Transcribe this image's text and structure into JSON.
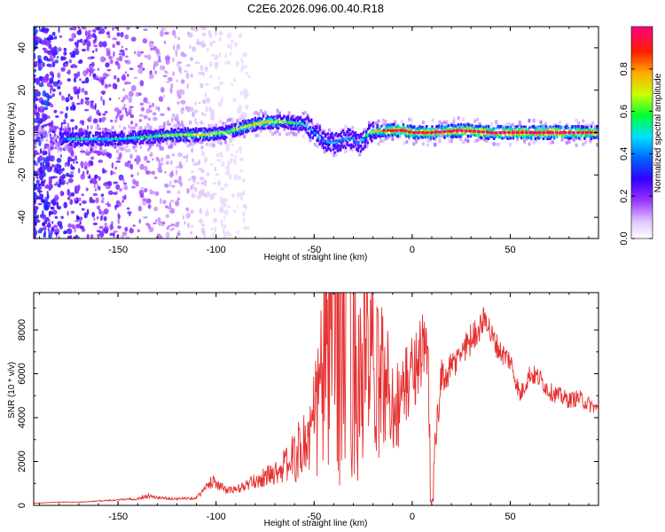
{
  "window": {
    "title": "C2E6.2026.096.00.40.R18"
  },
  "chart_data": [
    {
      "type": "heatmap",
      "title": "C2E6.2026.096.00.40.R18",
      "xlabel": "Height of straight line (km)",
      "ylabel": "Frequency (Hz)",
      "xlim": [
        -193,
        95
      ],
      "ylim": [
        -50,
        50
      ],
      "x_ticks": [
        -150,
        -100,
        -50,
        0,
        50
      ],
      "y_ticks": [
        -40,
        -20,
        0,
        20,
        40
      ],
      "colorbar": {
        "label": "Normalized spectral amplitude",
        "range": [
          0,
          1
        ],
        "ticks": [
          0.0,
          0.2,
          0.4,
          0.6,
          0.8
        ],
        "tick_labels": [
          "0.0",
          "0.2",
          "0.4",
          "0.6",
          "0.8"
        ],
        "colors": [
          "#ffffff",
          "#cc99ff",
          "#7a00e6",
          "#2020ff",
          "#00d0ff",
          "#00ff00",
          "#ffff00",
          "#ff8000",
          "#ff0000",
          "#ff0080"
        ]
      },
      "ridge": {
        "x": [
          -180,
          -165,
          -150,
          -135,
          -120,
          -105,
          -95,
          -85,
          -75,
          -65,
          -55,
          -50,
          -45,
          -40,
          -35,
          -30,
          -27,
          -22,
          -15,
          -5,
          0,
          10,
          25,
          40,
          55,
          70,
          85,
          95
        ],
        "freq": [
          -3,
          -3,
          -3,
          -2,
          -1,
          -1,
          0,
          3,
          5,
          5,
          4,
          0,
          -4,
          -5,
          -3,
          -3,
          -5,
          0,
          1,
          1,
          0,
          0,
          1,
          0,
          0,
          0,
          0,
          0
        ],
        "amplitude": [
          0.4,
          0.4,
          0.4,
          0.45,
          0.55,
          0.6,
          0.55,
          0.6,
          0.65,
          0.5,
          0.4,
          0.35,
          0.35,
          0.35,
          0.35,
          0.3,
          0.35,
          0.5,
          0.8,
          0.9,
          0.85,
          0.9,
          0.9,
          0.92,
          0.95,
          0.95,
          0.9,
          0.8
        ]
      }
    },
    {
      "type": "line",
      "xlabel": "Height of straight line (km)",
      "ylabel": "SNR (10 * v/v)",
      "xlim": [
        -193,
        95
      ],
      "ylim": [
        0,
        9700
      ],
      "x_ticks": [
        -150,
        -100,
        50
      ],
      "x_ticks_extra": [
        -50,
        0
      ],
      "y_ticks": [
        0,
        2000,
        4000,
        6000,
        8000
      ],
      "series": [
        {
          "color": "#e63030",
          "x": [
            -193,
            -180,
            -170,
            -160,
            -150,
            -140,
            -135,
            -130,
            -120,
            -110,
            -101,
            -100,
            -95,
            -90,
            -85,
            -80,
            -75,
            -70,
            -65,
            -60,
            -55,
            -50,
            -48,
            -45,
            -42,
            -40,
            -37,
            -35,
            -32,
            -30,
            -27,
            -25,
            -22,
            -20,
            -18,
            -15,
            -12,
            -10,
            -7,
            -5,
            -2,
            0,
            5,
            8,
            10,
            12,
            15,
            20,
            25,
            30,
            35,
            38,
            40,
            45,
            50,
            55,
            60,
            65,
            70,
            75,
            80,
            85,
            90,
            95
          ],
          "y": [
            100,
            150,
            150,
            200,
            250,
            300,
            450,
            350,
            300,
            350,
            1200,
            1000,
            700,
            700,
            900,
            1100,
            1300,
            1500,
            1800,
            2200,
            2800,
            3500,
            4800,
            6500,
            7800,
            8800,
            8500,
            7000,
            7800,
            6200,
            5500,
            6500,
            7000,
            6000,
            5500,
            6000,
            5200,
            4800,
            4600,
            5000,
            5800,
            6000,
            7200,
            6500,
            200,
            3000,
            5800,
            6200,
            7000,
            7600,
            8200,
            8600,
            7800,
            7000,
            6600,
            5000,
            6000,
            5800,
            5200,
            5000,
            4800,
            4900,
            4600,
            4400
          ],
          "jitter": [
            0.08,
            0.08,
            0.1,
            0.12,
            0.15,
            0.2,
            0.3,
            0.2,
            0.18,
            0.2,
            0.3,
            0.25,
            0.25,
            0.3,
            0.3,
            0.3,
            0.35,
            0.35,
            0.45,
            0.55,
            0.6,
            0.75,
            0.8,
            0.85,
            0.9,
            0.9,
            0.9,
            0.9,
            0.85,
            0.85,
            0.8,
            0.8,
            0.7,
            0.7,
            0.65,
            0.6,
            0.55,
            0.5,
            0.45,
            0.4,
            0.35,
            0.3,
            0.25,
            0.3,
            0.6,
            0.3,
            0.15,
            0.12,
            0.1,
            0.1,
            0.08,
            0.08,
            0.08,
            0.08,
            0.08,
            0.08,
            0.08,
            0.08,
            0.08,
            0.08,
            0.08,
            0.08,
            0.08,
            0.06
          ]
        }
      ]
    }
  ]
}
